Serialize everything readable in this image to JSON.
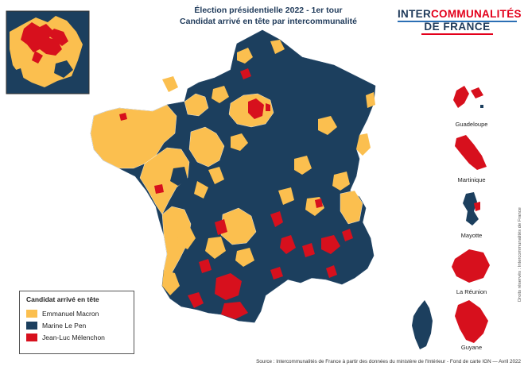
{
  "title": {
    "line1": "Élection présidentielle 2022 - 1er tour",
    "line2": "Candidat arrivé en tête par intercommunalité"
  },
  "logo": {
    "part1": "INTER",
    "part2": "COMMUNALITÉS",
    "line2": "DE FRANCE"
  },
  "legend": {
    "title": "Candidat arrivé en tête",
    "items": [
      {
        "label": "Emmanuel Macron",
        "color": "#fbbf4f"
      },
      {
        "label": "Marine Le Pen",
        "color": "#1c3f5e"
      },
      {
        "label": "Jean-Luc Mélenchon",
        "color": "#d7101d"
      }
    ]
  },
  "territories": [
    {
      "name": "Guadeloupe"
    },
    {
      "name": "Martinique"
    },
    {
      "name": "Mayotte"
    },
    {
      "name": "La Réunion"
    },
    {
      "name": "Guyane"
    }
  ],
  "source": "Source : Intercommunalités de France à partir des données du ministère de l'Intérieur - Fond de carte IGN — Avril 2022",
  "credit": "Droits réservés : Intercommunalités de France",
  "colors": {
    "macron": "#fbbf4f",
    "lepen": "#1c3f5e",
    "melenchon": "#d7101d",
    "border": "#ffffff",
    "title": "#1f3a5a"
  }
}
